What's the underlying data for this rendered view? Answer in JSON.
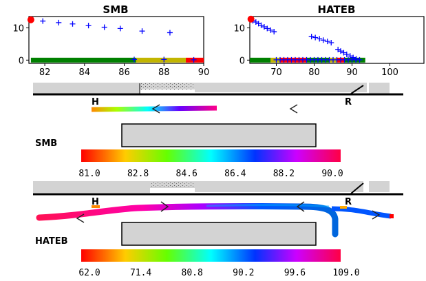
{
  "chart_data": [
    {
      "type": "scatter",
      "title": "SMB",
      "xlim": [
        81.2,
        90
      ],
      "ylim": [
        -1,
        13.5
      ],
      "xticks": [
        "82",
        "84",
        "86",
        "88",
        "90"
      ],
      "yticks": [
        "0",
        "10"
      ],
      "start_marker": {
        "x": 81.3,
        "y": 12.5,
        "color": "#ff0000"
      },
      "series": [
        {
          "marker": "plus",
          "color": "#0000ff",
          "points": [
            [
              81.9,
              12.1
            ],
            [
              82.7,
              11.6
            ],
            [
              83.4,
              11.2
            ],
            [
              84.2,
              10.7
            ],
            [
              85.0,
              10.2
            ],
            [
              85.8,
              9.8
            ],
            [
              86.9,
              9.0
            ],
            [
              88.3,
              8.5
            ],
            [
              86.5,
              0.2
            ],
            [
              88.0,
              0.2
            ],
            [
              89.5,
              0.1
            ]
          ]
        }
      ],
      "bands": [
        {
          "from": 81.3,
          "to": 86.6,
          "color": "#008000"
        },
        {
          "from": 86.6,
          "to": 89.1,
          "color": "#c2b500"
        },
        {
          "from": 89.1,
          "to": 90.0,
          "color": "#ff0000"
        }
      ]
    },
    {
      "type": "scatter",
      "title": "HATEB",
      "xlim": [
        63,
        109
      ],
      "ylim": [
        -1,
        13.5
      ],
      "xticks": [
        "70",
        "80",
        "90",
        "100"
      ],
      "yticks": [
        "0",
        "10"
      ],
      "start_marker": {
        "x": 63.3,
        "y": 12.7,
        "color": "#ff0000"
      },
      "series": [
        {
          "marker": "plus",
          "color": "#0000ff",
          "points": [
            [
              63.8,
              12.2
            ],
            [
              64.6,
              11.8
            ],
            [
              65.3,
              11.3
            ],
            [
              66.0,
              10.8
            ],
            [
              66.8,
              10.3
            ],
            [
              67.6,
              9.8
            ],
            [
              68.5,
              9.3
            ],
            [
              69.4,
              8.8
            ],
            [
              79.3,
              7.3
            ],
            [
              80.3,
              7.0
            ],
            [
              81.4,
              6.6
            ],
            [
              82.4,
              6.2
            ],
            [
              83.5,
              5.8
            ],
            [
              84.5,
              5.4
            ],
            [
              86.3,
              3.3
            ],
            [
              87.0,
              2.8
            ],
            [
              87.8,
              2.3
            ],
            [
              88.6,
              1.8
            ],
            [
              89.5,
              1.3
            ],
            [
              90.3,
              0.8
            ],
            [
              91.1,
              0.4
            ],
            [
              70.0,
              0.1
            ],
            [
              71.0,
              0.1
            ],
            [
              72.0,
              0.1
            ],
            [
              73.0,
              0.1
            ],
            [
              74.0,
              0.1
            ],
            [
              75.0,
              0.1
            ],
            [
              76.0,
              0.1
            ],
            [
              77.0,
              0.1
            ],
            [
              78.0,
              0.1
            ],
            [
              79.0,
              0.1
            ],
            [
              80.0,
              0.1
            ],
            [
              81.0,
              0.1
            ],
            [
              82.0,
              0.1
            ],
            [
              83.0,
              0.1
            ],
            [
              84.0,
              0.1
            ],
            [
              85.0,
              0.1
            ],
            [
              86.0,
              0.1
            ],
            [
              87.0,
              0.1
            ],
            [
              88.0,
              0.1
            ],
            [
              89.0,
              0.1
            ],
            [
              90.0,
              0.1
            ],
            [
              91.0,
              0.1
            ],
            [
              92.0,
              0.1
            ]
          ]
        }
      ],
      "bands": [
        {
          "from": 63.0,
          "to": 68.5,
          "color": "#008000"
        },
        {
          "from": 68.5,
          "to": 71.0,
          "color": "#c2b500"
        },
        {
          "from": 71.0,
          "to": 78.0,
          "color": "#ff0000"
        },
        {
          "from": 78.0,
          "to": 84.0,
          "color": "#008000"
        },
        {
          "from": 84.0,
          "to": 86.0,
          "color": "#c2b500"
        },
        {
          "from": 86.0,
          "to": 88.0,
          "color": "#ff0000"
        },
        {
          "from": 88.0,
          "to": 93.5,
          "color": "#008000"
        }
      ]
    },
    {
      "type": "colorbar",
      "label": "SMB",
      "start_marker": "H",
      "end_marker": "R",
      "ticks": [
        "81.0",
        "82.8",
        "84.6",
        "86.4",
        "88.2",
        "90.0"
      ]
    },
    {
      "type": "colorbar",
      "label": "HATEB",
      "start_marker": "H",
      "end_marker": "R",
      "ticks": [
        "62.0",
        "71.4",
        "80.8",
        "90.2",
        "99.6",
        "109.0"
      ]
    }
  ]
}
